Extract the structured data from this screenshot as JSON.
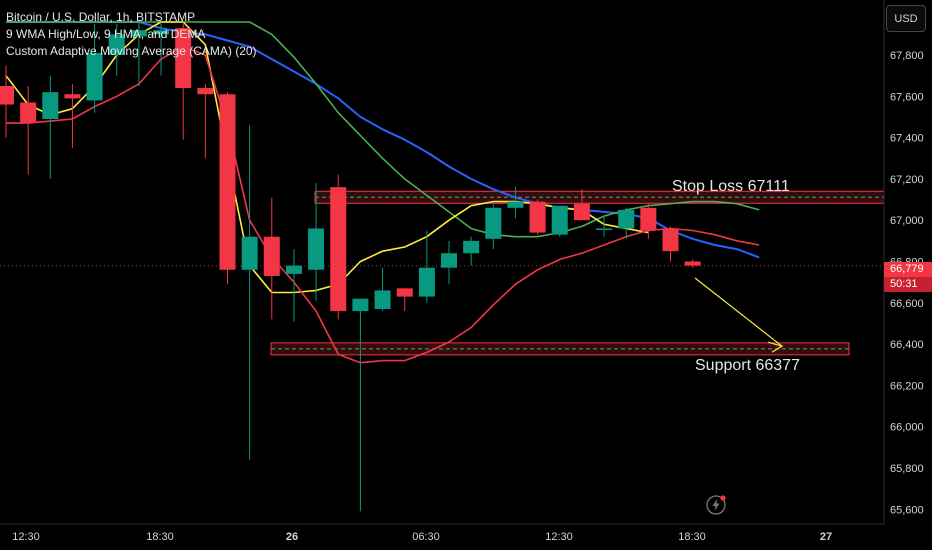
{
  "legend": {
    "line1": "Bitcoin / U.S. Dollar, 1h, BITSTAMP",
    "line2": "9 WMA High/Low, 9 HMA, and DEMA",
    "line3": "Custom Adaptive Moving Average (CAMA) (20)"
  },
  "currency_button": "USD",
  "price_label": {
    "price": "66,779",
    "countdown": "50:31"
  },
  "annotations": {
    "stop_loss": {
      "text": "Stop Loss 67111",
      "value": 67111
    },
    "support": {
      "text": "Support 66377",
      "value": 66377
    }
  },
  "colors": {
    "background": "#000000",
    "up": "#089981",
    "down": "#f23645",
    "blue_line": "#2962ff",
    "green_line": "#4caf50",
    "yellow_line": "#ffeb3b",
    "red_line": "#f23645"
  },
  "chart_data": {
    "type": "candlestick",
    "title": "",
    "xlabel": "",
    "ylabel": "",
    "ylim": [
      65600,
      67950
    ],
    "y_ticks": [
      "67,800",
      "67,600",
      "67,400",
      "67,200",
      "67,000",
      "66,800",
      "66,600",
      "66,400",
      "66,200",
      "66,000",
      "65,800",
      "65,600"
    ],
    "x_ticks": [
      "12:30",
      "18:30",
      "26",
      "06:30",
      "12:30",
      "18:30",
      "27"
    ],
    "last_price": 66779,
    "candles": [
      {
        "o": 67650,
        "h": 67750,
        "l": 67400,
        "c": 67560
      },
      {
        "o": 67570,
        "h": 67650,
        "l": 67220,
        "c": 67470
      },
      {
        "o": 67490,
        "h": 67700,
        "l": 67200,
        "c": 67620
      },
      {
        "o": 67610,
        "h": 67660,
        "l": 67350,
        "c": 67590
      },
      {
        "o": 67580,
        "h": 67950,
        "l": 67520,
        "c": 67810
      },
      {
        "o": 67800,
        "h": 67950,
        "l": 67700,
        "c": 67900
      },
      {
        "o": 67890,
        "h": 67960,
        "l": 67650,
        "c": 67920
      },
      {
        "o": 67900,
        "h": 67960,
        "l": 67700,
        "c": 67920
      },
      {
        "o": 67930,
        "h": 67960,
        "l": 67390,
        "c": 67640
      },
      {
        "o": 67640,
        "h": 67660,
        "l": 67300,
        "c": 67610
      },
      {
        "o": 67610,
        "h": 67620,
        "l": 66690,
        "c": 66760
      },
      {
        "o": 66760,
        "h": 67460,
        "l": 65840,
        "c": 66920
      },
      {
        "o": 66920,
        "h": 67110,
        "l": 66520,
        "c": 66730
      },
      {
        "o": 66740,
        "h": 66860,
        "l": 66510,
        "c": 66780
      },
      {
        "o": 66760,
        "h": 67180,
        "l": 66610,
        "c": 66960
      },
      {
        "o": 67160,
        "h": 67220,
        "l": 66520,
        "c": 66560
      },
      {
        "o": 66560,
        "h": 66620,
        "l": 65590,
        "c": 66620
      },
      {
        "o": 66570,
        "h": 66770,
        "l": 66560,
        "c": 66660
      },
      {
        "o": 66670,
        "h": 66670,
        "l": 66560,
        "c": 66630
      },
      {
        "o": 66630,
        "h": 66950,
        "l": 66600,
        "c": 66770
      },
      {
        "o": 66770,
        "h": 66900,
        "l": 66690,
        "c": 66840
      },
      {
        "o": 66840,
        "h": 66920,
        "l": 66780,
        "c": 66900
      },
      {
        "o": 66910,
        "h": 67080,
        "l": 66860,
        "c": 67060
      },
      {
        "o": 67060,
        "h": 67160,
        "l": 67010,
        "c": 67090
      },
      {
        "o": 67090,
        "h": 67100,
        "l": 66930,
        "c": 66940
      },
      {
        "o": 66930,
        "h": 67060,
        "l": 66920,
        "c": 67070
      },
      {
        "o": 67080,
        "h": 67150,
        "l": 67010,
        "c": 67000
      },
      {
        "o": 66960,
        "h": 67020,
        "l": 66920,
        "c": 66960
      },
      {
        "o": 66960,
        "h": 67060,
        "l": 66910,
        "c": 67050
      },
      {
        "o": 67060,
        "h": 67080,
        "l": 66910,
        "c": 66950
      },
      {
        "o": 66960,
        "h": 66970,
        "l": 66800,
        "c": 66850
      },
      {
        "o": 66800,
        "h": 66810,
        "l": 66770,
        "c": 66780
      }
    ],
    "series": [
      {
        "color": "#2962ff",
        "values": [
          67960,
          67960,
          67960,
          67960,
          67960,
          67960,
          67960,
          67930,
          67910,
          67900,
          67870,
          67840,
          67780,
          67720,
          67660,
          67590,
          67500,
          67440,
          67390,
          67330,
          67260,
          67200,
          67150,
          67110,
          67080,
          67060,
          67050,
          67040,
          67030,
          67010,
          66950,
          66910,
          66880,
          66860,
          66820
        ]
      },
      {
        "color": "#4caf50",
        "values": [
          67960,
          67960,
          67960,
          67960,
          67960,
          67960,
          67960,
          67960,
          67960,
          67960,
          67960,
          67960,
          67900,
          67790,
          67660,
          67520,
          67410,
          67300,
          67200,
          67120,
          67040,
          66960,
          66930,
          66920,
          66920,
          66940,
          66970,
          67020,
          67050,
          67070,
          67080,
          67090,
          67090,
          67080,
          67050
        ]
      },
      {
        "color": "#ffeb3b",
        "values": [
          67700,
          67560,
          67510,
          67540,
          67650,
          67800,
          67900,
          67960,
          67960,
          67850,
          67300,
          66780,
          66650,
          66650,
          66660,
          66690,
          66800,
          66850,
          66870,
          66920,
          67000,
          67070,
          67090,
          67090,
          67080,
          67060,
          67050,
          66980,
          66960,
          66940
        ]
      },
      {
        "color": "#f23645",
        "values": [
          67470,
          67470,
          67480,
          67490,
          67550,
          67600,
          67660,
          67780,
          67840,
          67800,
          67460,
          67000,
          66820,
          66700,
          66560,
          66350,
          66310,
          66320,
          66320,
          66360,
          66410,
          66480,
          66590,
          66690,
          66760,
          66810,
          66840,
          66880,
          66920,
          66950,
          66960,
          66950,
          66930,
          66900,
          66880
        ]
      }
    ],
    "levels": [
      {
        "value": 67111,
        "color": "#f23645"
      },
      {
        "value": 66377,
        "color": "#f23645"
      }
    ],
    "projection": {
      "from": 66720,
      "to": 66390
    }
  }
}
